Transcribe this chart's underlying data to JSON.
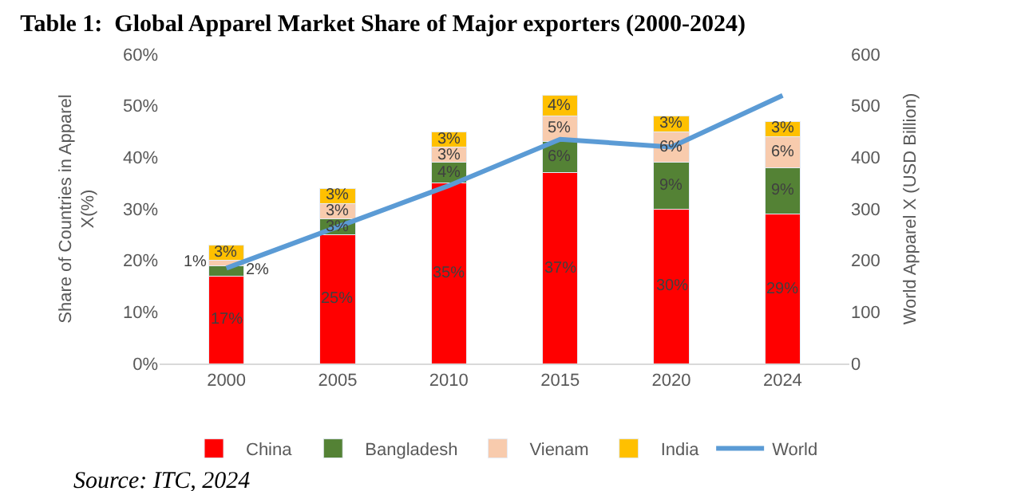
{
  "chart_data": {
    "type": "bar",
    "stacked": true,
    "title": "Table 1:  Global Apparel Market Share of Major exporters (2000-2024)",
    "ylabel": "Share of Countries in Apparel X(%)",
    "y2label": "World Apparel X (USD Billion)",
    "categories": [
      "2000",
      "2005",
      "2010",
      "2015",
      "2020",
      "2024"
    ],
    "series": [
      {
        "name": "China",
        "color": "#ff0000",
        "values": [
          17,
          25,
          35,
          37,
          30,
          29
        ],
        "value_labels": [
          "17%",
          "25%",
          "35%",
          "37%",
          "30%",
          "29%"
        ]
      },
      {
        "name": "Bangladesh",
        "color": "#548235",
        "values": [
          2,
          3,
          4,
          6,
          9,
          9
        ],
        "value_labels": [
          "2%",
          "3%",
          "4%",
          "6%",
          "9%",
          "9%"
        ]
      },
      {
        "name": "Vienam",
        "color": "#f8cbad",
        "values": [
          1,
          3,
          3,
          5,
          6,
          6
        ],
        "value_labels": [
          "1%",
          "3%",
          "3%",
          "5%",
          "6%",
          "6%"
        ]
      },
      {
        "name": "India",
        "color": "#ffc000",
        "values": [
          3,
          3,
          3,
          4,
          3,
          3
        ],
        "value_labels": [
          "3%",
          "3%",
          "3%",
          "4%",
          "3%",
          "3%"
        ]
      },
      {
        "name": "World",
        "type": "line",
        "axis": "y2",
        "color": "#5b9bd5",
        "marker": "none",
        "values": [
          185,
          265,
          345,
          435,
          420,
          520
        ]
      }
    ],
    "ylim": [
      0,
      60
    ],
    "yticks": [
      {
        "value": 0,
        "label": "0%"
      },
      {
        "value": 10,
        "label": "10%"
      },
      {
        "value": 20,
        "label": "20%"
      },
      {
        "value": 30,
        "label": "30%"
      },
      {
        "value": 40,
        "label": "40%"
      },
      {
        "value": 50,
        "label": "50%"
      },
      {
        "value": 60,
        "label": "60%"
      }
    ],
    "y2lim": [
      0,
      600
    ],
    "y2ticks": [
      0,
      100,
      200,
      300,
      400,
      500,
      600
    ],
    "legend": "bottom",
    "annotations": [
      "Source: ITC, 2024"
    ]
  }
}
